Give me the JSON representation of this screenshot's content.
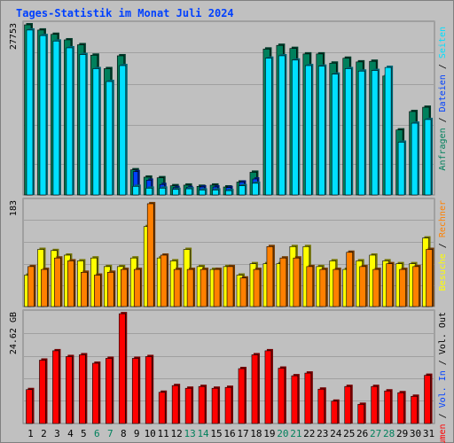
{
  "title": "Tages-Statistik im Monat Juli 2024",
  "colors": {
    "frame_bg": "#c0c0c0",
    "border": "#808080",
    "grid": "#a0a0a0",
    "title": "#0040ff",
    "weekday": "#000000",
    "weekend": "#00805c",
    "anfragen": "#00805c",
    "dateien": "#0040ff",
    "seiten": "#00e0ff",
    "besuche": "#ffff00",
    "rechner": "#ff8000",
    "vol_out": "#000000",
    "vol_in": "#0040ff",
    "volumen": "#ff0000",
    "tick": "#000000"
  },
  "chart_data": [
    {
      "type": "bar",
      "panel": "top",
      "ymax_label": "27753",
      "ymax": 27753,
      "legend": [
        "Anfragen",
        "Dateien",
        "Seiten"
      ],
      "categories": [
        "1",
        "2",
        "3",
        "4",
        "5",
        "6",
        "7",
        "8",
        "9",
        "10",
        "11",
        "12",
        "13",
        "14",
        "15",
        "16",
        "17",
        "18",
        "19",
        "20",
        "21",
        "22",
        "23",
        "24",
        "25",
        "26",
        "27",
        "28",
        "29",
        "30",
        "31"
      ],
      "weekend": [
        6,
        7,
        13,
        14,
        20,
        21,
        27,
        28
      ],
      "series": [
        {
          "name": "Anfragen",
          "key": "anfragen",
          "values": [
            27750,
            26900,
            26200,
            25300,
            24500,
            22800,
            20600,
            22700,
            4100,
            2900,
            2800,
            1500,
            1600,
            1400,
            1600,
            1300,
            2100,
            3700,
            23800,
            24400,
            23900,
            23000,
            23000,
            21500,
            22300,
            21700,
            21800,
            19400,
            10600,
            13600,
            14300
          ]
        },
        {
          "name": "Dateien",
          "key": "dateien",
          "values": [
            800,
            600,
            700,
            600,
            800,
            600,
            700,
            500,
            3800,
            2400,
            1700,
            1200,
            1200,
            1300,
            1300,
            1200,
            2100,
            2600,
            600,
            700,
            700,
            600,
            700,
            600,
            600,
            700,
            500,
            500,
            500,
            500,
            500
          ]
        },
        {
          "name": "Seiten",
          "key": "seiten",
          "values": [
            26900,
            26000,
            25100,
            24000,
            22900,
            20600,
            18500,
            21100,
            1400,
            1100,
            1100,
            900,
            1000,
            800,
            800,
            700,
            1500,
            1900,
            22300,
            22700,
            22000,
            21100,
            21000,
            19700,
            20600,
            20200,
            20300,
            20800,
            8600,
            11700,
            12300
          ]
        }
      ]
    },
    {
      "type": "bar",
      "panel": "middle",
      "ymax_label": "183",
      "ymax": 183,
      "legend": [
        "Besuche",
        "Rechner"
      ],
      "categories": [
        "1",
        "2",
        "3",
        "4",
        "5",
        "6",
        "7",
        "8",
        "9",
        "10",
        "11",
        "12",
        "13",
        "14",
        "15",
        "16",
        "17",
        "18",
        "19",
        "20",
        "21",
        "22",
        "23",
        "24",
        "25",
        "26",
        "27",
        "28",
        "29",
        "30",
        "31"
      ],
      "series": [
        {
          "name": "Besuche",
          "key": "besuche",
          "values": [
            55,
            100,
            98,
            90,
            80,
            85,
            70,
            70,
            85,
            140,
            85,
            80,
            100,
            70,
            65,
            70,
            55,
            75,
            75,
            75,
            105,
            105,
            70,
            80,
            65,
            80,
            90,
            80,
            75,
            75,
            120
          ]
        },
        {
          "name": "Rechner",
          "key": "rechner",
          "values": [
            70,
            65,
            85,
            80,
            60,
            55,
            60,
            65,
            65,
            180,
            90,
            65,
            65,
            65,
            65,
            70,
            50,
            65,
            105,
            85,
            85,
            70,
            65,
            65,
            95,
            70,
            65,
            75,
            65,
            70,
            100
          ]
        }
      ]
    },
    {
      "type": "bar",
      "panel": "bottom",
      "ymax_label": "24.62 GB",
      "ymax": 24.62,
      "unit": "GB",
      "legend": [
        "Volumen",
        "Vol. In",
        "Vol. Out"
      ],
      "categories": [
        "1",
        "2",
        "3",
        "4",
        "5",
        "6",
        "7",
        "8",
        "9",
        "10",
        "11",
        "12",
        "13",
        "14",
        "15",
        "16",
        "17",
        "18",
        "19",
        "20",
        "21",
        "22",
        "23",
        "24",
        "25",
        "26",
        "27",
        "28",
        "29",
        "30",
        "31"
      ],
      "series": [
        {
          "name": "Volumen",
          "key": "volumen",
          "values": [
            7.6,
            14.2,
            16.3,
            15.0,
            15.4,
            13.5,
            14.6,
            24.6,
            14.6,
            15.0,
            7.0,
            8.5,
            7.9,
            8.3,
            7.9,
            8.1,
            12.3,
            15.4,
            16.3,
            12.4,
            10.7,
            11.3,
            7.7,
            5.0,
            8.3,
            4.3,
            8.3,
            7.3,
            6.9,
            6.1,
            10.8
          ]
        }
      ]
    }
  ]
}
